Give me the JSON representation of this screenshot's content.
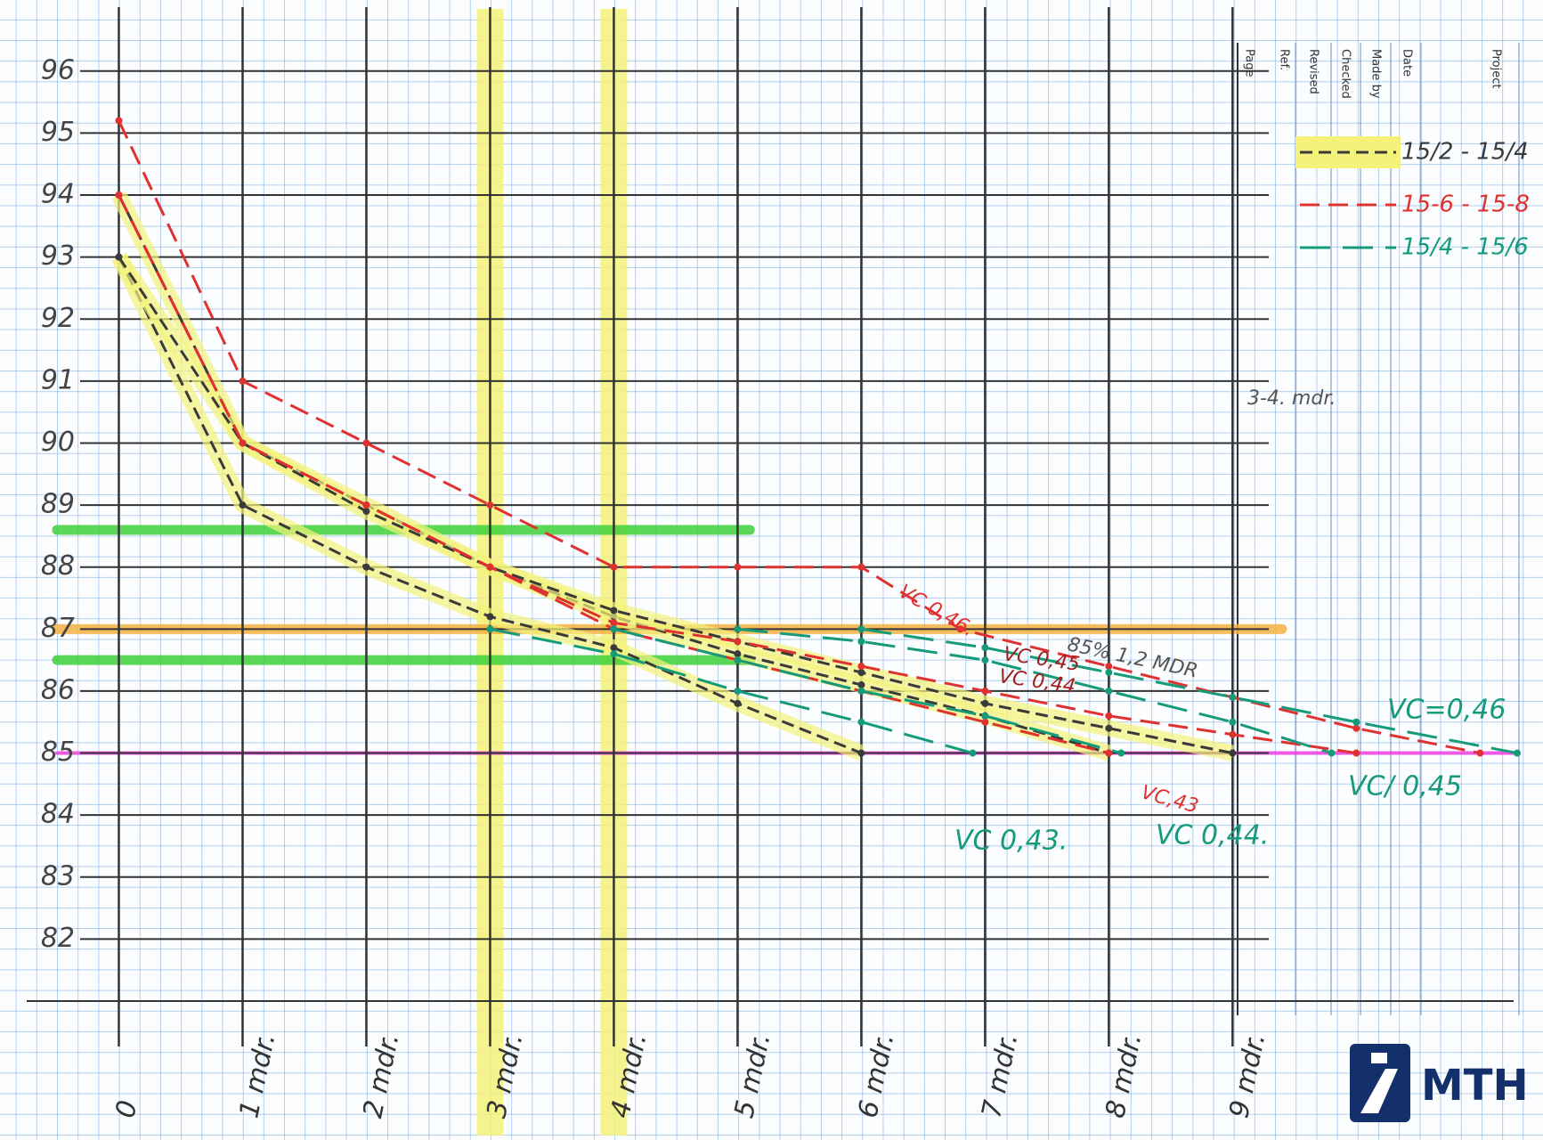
{
  "chart_data": {
    "type": "line",
    "xlim": [
      -0.5,
      11.3
    ],
    "ylim": [
      81,
      96.5
    ],
    "xticks": [
      0,
      {
        "value": 1,
        "label": "1 mdr."
      },
      {
        "value": 2,
        "label": "2 mdr."
      },
      {
        "value": 3,
        "label": "3 mdr."
      },
      {
        "value": 4,
        "label": "4 mdr."
      },
      {
        "value": 5,
        "label": "5 mdr."
      },
      {
        "value": 6,
        "label": "6 mdr."
      },
      {
        "value": 7,
        "label": "7 mdr."
      },
      {
        "value": 8,
        "label": "8 mdr."
      },
      {
        "value": 9,
        "label": "9 mdr."
      }
    ],
    "yticks": [
      82,
      83,
      84,
      85,
      86,
      87,
      88,
      89,
      90,
      91,
      92,
      93,
      94,
      95,
      96
    ],
    "grid": true,
    "hlines": [
      {
        "value": 88.6,
        "color": "#3fd13a",
        "x": [
          -0.5,
          5.1
        ]
      },
      {
        "value": 86.5,
        "color": "#3fd13a",
        "x": [
          -0.5,
          5.1
        ]
      },
      {
        "value": 87,
        "color": "#f5b342",
        "x": [
          -0.5,
          9.4
        ]
      },
      {
        "value": 85,
        "color": "#f03ce0",
        "x": [
          -0.5,
          11.3
        ]
      }
    ],
    "vlines": [
      {
        "value": 3,
        "color": "#f4f27a"
      },
      {
        "value": 4,
        "color": "#f4f27a"
      }
    ],
    "series": [
      {
        "name": "15/2 - 15/4",
        "color": "#3a3a3a",
        "highlight": "#f4f27a",
        "curves": [
          {
            "x": [
              0,
              1,
              2,
              3,
              4,
              5,
              6
            ],
            "values": [
              93,
              89,
              88,
              87.2,
              86.7,
              85.8,
              85
            ]
          },
          {
            "x": [
              0,
              1,
              2,
              3,
              4,
              5,
              6,
              7,
              8
            ],
            "values": [
              94,
              90,
              89,
              88,
              87.2,
              86.6,
              86.1,
              85.6,
              85
            ]
          },
          {
            "x": [
              0,
              1,
              2,
              3,
              4,
              5,
              6,
              7,
              8,
              9
            ],
            "values": [
              93,
              90,
              88.9,
              88,
              87.3,
              86.8,
              86.3,
              85.8,
              85.4,
              85
            ]
          }
        ]
      },
      {
        "name": "15-6 - 15-8",
        "color": "#e03131",
        "curves": [
          {
            "x": [
              0,
              1,
              2,
              3,
              4,
              5,
              6,
              6.8,
              8,
              9,
              10,
              11
            ],
            "values": [
              95.2,
              91,
              90,
              89,
              88,
              88,
              88,
              87,
              86.4,
              85.9,
              85.4,
              85
            ]
          },
          {
            "x": [
              0,
              1,
              2,
              3,
              4,
              5,
              6,
              7,
              8,
              9,
              10
            ],
            "values": [
              94,
              90,
              89,
              88,
              87.1,
              86.8,
              86.4,
              86,
              85.6,
              85.3,
              85
            ]
          },
          {
            "x": [
              0,
              1,
              2,
              3,
              4,
              5,
              6,
              7,
              8
            ],
            "values": [
              94,
              90,
              89,
              88,
              87,
              86.5,
              86,
              85.5,
              85
            ]
          }
        ]
      },
      {
        "name": "15/4 - 15/6",
        "color": "#159b7a",
        "curves": [
          {
            "x": [
              3,
              4,
              5,
              6,
              6.9
            ],
            "values": [
              87,
              86.6,
              86,
              85.5,
              85
            ]
          },
          {
            "x": [
              4,
              5,
              6,
              7,
              8.1
            ],
            "values": [
              87,
              86.5,
              86,
              85.6,
              85
            ]
          },
          {
            "x": [
              5,
              6,
              7,
              8,
              9,
              9.8
            ],
            "values": [
              87,
              86.8,
              86.5,
              86,
              85.5,
              85
            ]
          },
          {
            "x": [
              6,
              7,
              8,
              9,
              10,
              11.3
            ],
            "values": [
              87,
              86.7,
              86.3,
              85.9,
              85.5,
              85
            ]
          }
        ]
      }
    ],
    "annotations": [
      "VC 0,43.",
      "VC 0,44.",
      "VC/ 0,45",
      "VC=0,46",
      "VC,43",
      "VC 0,46.",
      "VC 0,45",
      "VC 0,44",
      "85% 1,2 MDR",
      "3-4. mdr."
    ]
  },
  "title_block": [
    "Page",
    "Ref.",
    "Revised",
    "Checked",
    "Made by",
    "Date",
    "Project"
  ],
  "logo": "MTH"
}
